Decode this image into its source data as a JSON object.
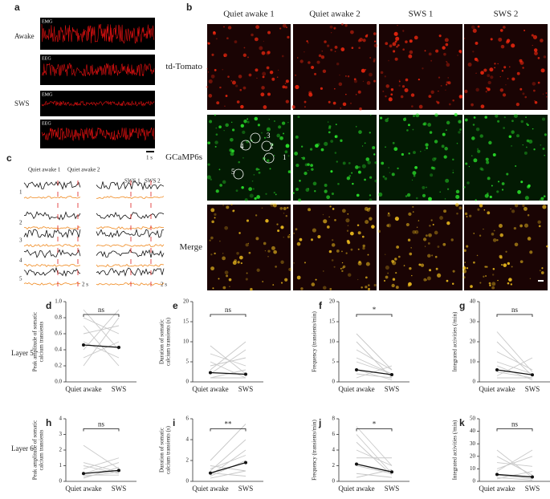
{
  "panel_a": {
    "label": "a",
    "rows": [
      {
        "label": "Awake",
        "traces": [
          "EMG",
          "EEG"
        ]
      },
      {
        "label": "SWS",
        "traces": [
          "EMG",
          "EEG"
        ]
      }
    ],
    "scale": "1 s"
  },
  "panel_b": {
    "label": "b",
    "columns": [
      "Quiet awake 1",
      "Quiet awake 2",
      "SWS 1",
      "SWS 2"
    ],
    "rows": [
      "td-Tomato",
      "GCaMP6s",
      "Merge"
    ],
    "cells": [
      "1",
      "2",
      "3",
      "4",
      "5"
    ]
  },
  "panel_c": {
    "label": "c",
    "epochs": [
      "Quiet awake 1",
      "Quiet awake 2",
      "SWS 1",
      "SWS 2"
    ],
    "cells": [
      "1",
      "2",
      "3",
      "4",
      "5"
    ],
    "scale": "2 s"
  },
  "layers": [
    "Layer 5",
    "Layer 6"
  ],
  "chart_data": [
    {
      "type": "paired",
      "label": "d",
      "ylabel": [
        "Peak amplitude of somatic",
        "calcium transients"
      ],
      "categories": [
        "Quiet awake",
        "SWS"
      ],
      "ylim": [
        0,
        1
      ],
      "yticks": [
        {
          "value": 0,
          "label": "0.0"
        },
        {
          "value": 0.2,
          "label": "0.2"
        },
        {
          "value": 0.4,
          "label": "0.4"
        },
        {
          "value": 0.6,
          "label": "0.6"
        },
        {
          "value": 0.8,
          "label": "0.8"
        },
        {
          "value": 1,
          "label": "1.0"
        }
      ],
      "values": [
        0.46,
        0.43
      ],
      "pairs": [
        [
          0.2,
          0.8
        ],
        [
          0.3,
          0.5
        ],
        [
          0.5,
          0.3
        ],
        [
          0.6,
          0.7
        ],
        [
          0.7,
          0.2
        ],
        [
          0.8,
          0.6
        ],
        [
          0.4,
          0.9
        ],
        [
          0.9,
          0.4
        ]
      ],
      "significance": "ns"
    },
    {
      "type": "paired",
      "label": "e",
      "ylabel": [
        "Duration of somatic",
        "calcium transients (s)"
      ],
      "categories": [
        "Quiet awake",
        "SWS"
      ],
      "ylim": [
        0,
        20
      ],
      "yticks": [
        0,
        5,
        10,
        15,
        20
      ],
      "values": [
        2.3,
        1.9
      ],
      "pairs": [
        [
          1,
          3
        ],
        [
          2,
          8
        ],
        [
          5,
          1
        ],
        [
          7,
          4
        ],
        [
          3,
          10
        ],
        [
          9,
          2
        ],
        [
          1,
          1
        ],
        [
          4,
          6
        ]
      ],
      "significance": "ns"
    },
    {
      "type": "paired",
      "label": "f",
      "ylabel": [
        "Frequency (transients/min)"
      ],
      "categories": [
        "Quiet awake",
        "SWS"
      ],
      "ylim": [
        0,
        20
      ],
      "yticks": [
        0,
        5,
        10,
        15,
        20
      ],
      "values": [
        3,
        1.8
      ],
      "pairs": [
        [
          2,
          1
        ],
        [
          5,
          2
        ],
        [
          8,
          3
        ],
        [
          10,
          1
        ],
        [
          1,
          4
        ],
        [
          6,
          2
        ],
        [
          12,
          3
        ],
        [
          3,
          0.5
        ]
      ],
      "significance": "*"
    },
    {
      "type": "paired",
      "label": "g",
      "ylabel": [
        "Integrated activities (/min)"
      ],
      "categories": [
        "Quiet awake",
        "SWS"
      ],
      "ylim": [
        0,
        40
      ],
      "yticks": [
        0,
        10,
        20,
        30,
        40
      ],
      "values": [
        6,
        3.5
      ],
      "pairs": [
        [
          5,
          2
        ],
        [
          10,
          4
        ],
        [
          15,
          6
        ],
        [
          20,
          3
        ],
        [
          3,
          12
        ],
        [
          8,
          1
        ],
        [
          25,
          5
        ],
        [
          2,
          2
        ]
      ],
      "significance": "ns"
    },
    {
      "type": "paired",
      "label": "h",
      "ylabel": [
        "Peak amplitude of somatic",
        "calcium transients"
      ],
      "categories": [
        "Quiet awake",
        "SWS"
      ],
      "ylim": [
        0,
        4
      ],
      "yticks": [
        0,
        1,
        2,
        3,
        4
      ],
      "values": [
        0.5,
        0.7
      ],
      "pairs": [
        [
          0.3,
          0.6
        ],
        [
          0.5,
          1.2
        ],
        [
          1,
          0.5
        ],
        [
          2.3,
          0.8
        ],
        [
          0.4,
          0.4
        ],
        [
          0.8,
          1.5
        ],
        [
          0.2,
          0.9
        ],
        [
          1.2,
          0.6
        ]
      ],
      "significance": "ns"
    },
    {
      "type": "paired",
      "label": "i",
      "ylabel": [
        "Duration of somatic",
        "calcium transients (s)"
      ],
      "categories": [
        "Quiet awake",
        "SWS"
      ],
      "ylim": [
        0,
        6
      ],
      "yticks": [
        0,
        2,
        4,
        6
      ],
      "values": [
        0.8,
        1.8
      ],
      "pairs": [
        [
          0.5,
          2
        ],
        [
          1,
          4
        ],
        [
          0.3,
          1
        ],
        [
          2,
          5.5
        ],
        [
          1.5,
          1
        ],
        [
          0.6,
          3
        ],
        [
          0.8,
          0.5
        ],
        [
          1.2,
          2.5
        ]
      ],
      "significance": "**"
    },
    {
      "type": "paired",
      "label": "j",
      "ylabel": [
        "Frequency (transients/min)"
      ],
      "categories": [
        "Quiet awake",
        "SWS"
      ],
      "ylim": [
        0,
        8
      ],
      "yticks": [
        0,
        2,
        4,
        6,
        8
      ],
      "values": [
        2.2,
        1.2
      ],
      "pairs": [
        [
          2,
          1
        ],
        [
          4,
          2
        ],
        [
          6,
          1
        ],
        [
          1,
          0.5
        ],
        [
          3,
          3
        ],
        [
          5,
          0.8
        ],
        [
          7,
          2
        ],
        [
          0.5,
          1.5
        ]
      ],
      "significance": "*"
    },
    {
      "type": "paired",
      "label": "k",
      "ylabel": [
        "Integrated activities (/min)"
      ],
      "categories": [
        "Quiet awake",
        "SWS"
      ],
      "ylim": [
        0,
        50
      ],
      "yticks": [
        0,
        10,
        20,
        30,
        40,
        50
      ],
      "values": [
        5.5,
        3.5
      ],
      "pairs": [
        [
          5,
          2
        ],
        [
          10,
          20
        ],
        [
          20,
          5
        ],
        [
          2,
          8
        ],
        [
          15,
          12
        ],
        [
          25,
          3
        ],
        [
          8,
          25
        ],
        [
          3,
          1
        ]
      ],
      "significance": "ns"
    }
  ]
}
